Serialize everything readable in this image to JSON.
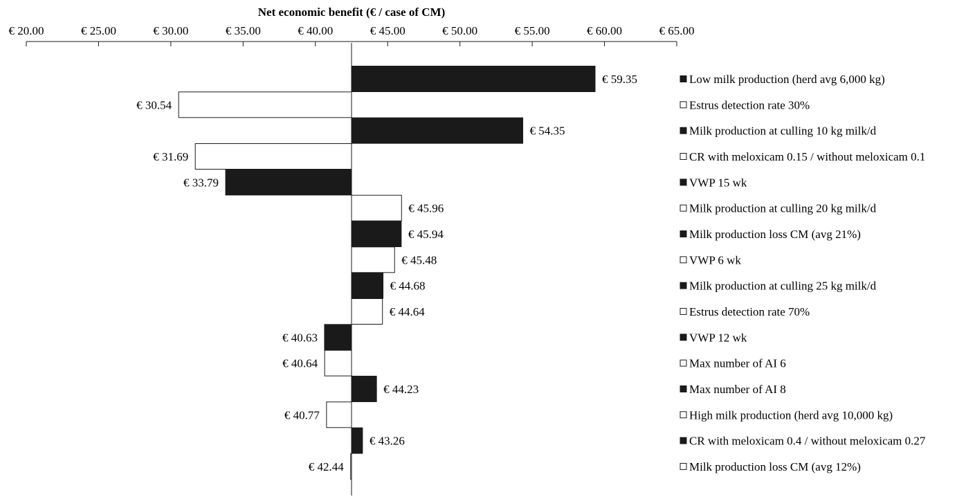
{
  "chart_data": {
    "type": "bar",
    "orientation": "horizontal",
    "style": "tornado",
    "title": "",
    "xlabel": "Net economic benefit (€ / case of CM)",
    "x_axis_position": "top",
    "xlim": [
      20,
      65
    ],
    "xticks": [
      20,
      25,
      30,
      35,
      40,
      45,
      50,
      55,
      60,
      65
    ],
    "xtick_labels": [
      "€ 20.00",
      "€ 25.00",
      "€ 30.00",
      "€ 35.00",
      "€ 40.00",
      "€ 45.00",
      "€ 50.00",
      "€ 55.00",
      "€ 60.00",
      "€ 65.00"
    ],
    "baseline": 42.5,
    "grid": false,
    "legend_position": "right",
    "colors": {
      "filled": "#1a1a1a",
      "open": "#ffffff",
      "stroke": "#1a1a1a"
    },
    "bars": [
      {
        "category": "Low milk production (herd avg 6,000 kg)",
        "value": 59.35,
        "label": "€ 59.35",
        "fill": "filled"
      },
      {
        "category": "Estrus detection rate 30%",
        "value": 30.54,
        "label": "€ 30.54",
        "fill": "open"
      },
      {
        "category": "Milk production at culling 10 kg milk/d",
        "value": 54.35,
        "label": "€ 54.35",
        "fill": "filled"
      },
      {
        "category": "CR with meloxicam 0.15 / without meloxicam 0.1",
        "value": 31.69,
        "label": "€ 31.69",
        "fill": "open"
      },
      {
        "category": "VWP 15 wk",
        "value": 33.79,
        "label": "€ 33.79",
        "fill": "filled"
      },
      {
        "category": "Milk production at culling 20 kg milk/d",
        "value": 45.96,
        "label": "€ 45.96",
        "fill": "open"
      },
      {
        "category": "Milk production loss CM (avg 21%)",
        "value": 45.94,
        "label": "€ 45.94",
        "fill": "filled"
      },
      {
        "category": "VWP 6 wk",
        "value": 45.48,
        "label": "€ 45.48",
        "fill": "open"
      },
      {
        "category": "Milk production at culling 25 kg milk/d",
        "value": 44.68,
        "label": "€ 44.68",
        "fill": "filled"
      },
      {
        "category": "Estrus detection rate 70%",
        "value": 44.64,
        "label": "€ 44.64",
        "fill": "open"
      },
      {
        "category": "VWP 12 wk",
        "value": 40.63,
        "label": "€ 40.63",
        "fill": "filled"
      },
      {
        "category": "Max number of AI 6",
        "value": 40.64,
        "label": "€ 40.64",
        "fill": "open"
      },
      {
        "category": "Max number of AI 8",
        "value": 44.23,
        "label": "€ 44.23",
        "fill": "filled"
      },
      {
        "category": "High milk production (herd avg 10,000 kg)",
        "value": 40.77,
        "label": "€ 40.77",
        "fill": "open"
      },
      {
        "category": "CR with meloxicam 0.4 / without meloxicam 0.27",
        "value": 43.26,
        "label": "€ 43.26",
        "fill": "filled"
      },
      {
        "category": "Milk production loss CM (avg 12%)",
        "value": 42.44,
        "label": "€ 42.44",
        "fill": "open"
      }
    ]
  }
}
